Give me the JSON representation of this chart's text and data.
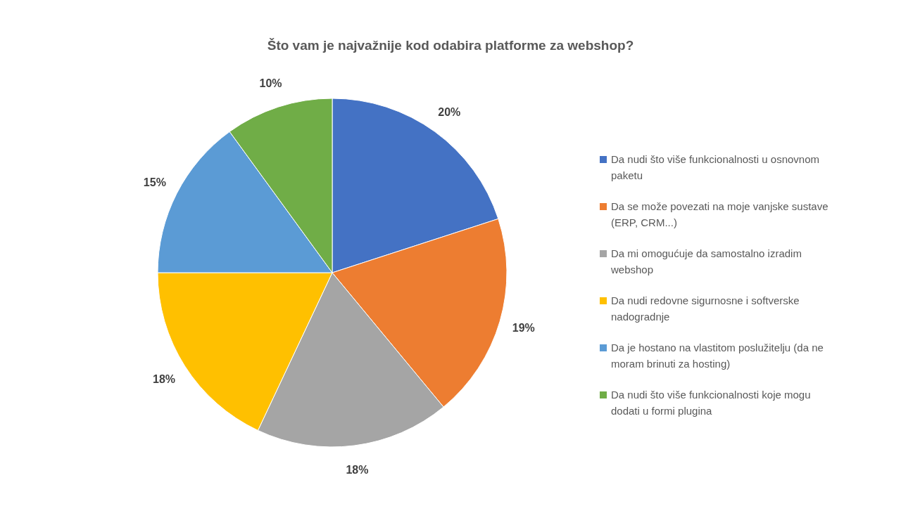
{
  "chart_data": {
    "type": "pie",
    "title": "Što vam je najvažnije kod odabira platforme za webshop?",
    "categories": [
      "Da nudi što više funkcionalnosti u osnovnom paketu",
      "Da se može povezati na moje vanjske sustave (ERP, CRM...)",
      "Da mi omogućuje da samostalno izradim webshop",
      "Da nudi redovne sigurnosne i softverske nadogradnje",
      "Da je hostano na vlastitom poslužitelju (da ne moram brinuti za hosting)",
      "Da nudi što više funkcionalnosti koje mogu dodati u formi plugina"
    ],
    "values": [
      20,
      19,
      18,
      18,
      15,
      10
    ],
    "colors": [
      "#4472c4",
      "#ed7d31",
      "#a5a5a5",
      "#ffc000",
      "#5b9bd5",
      "#70ad47"
    ],
    "value_labels": [
      "20%",
      "19%",
      "18%",
      "18%",
      "15%",
      "10%"
    ],
    "legend": "right"
  }
}
